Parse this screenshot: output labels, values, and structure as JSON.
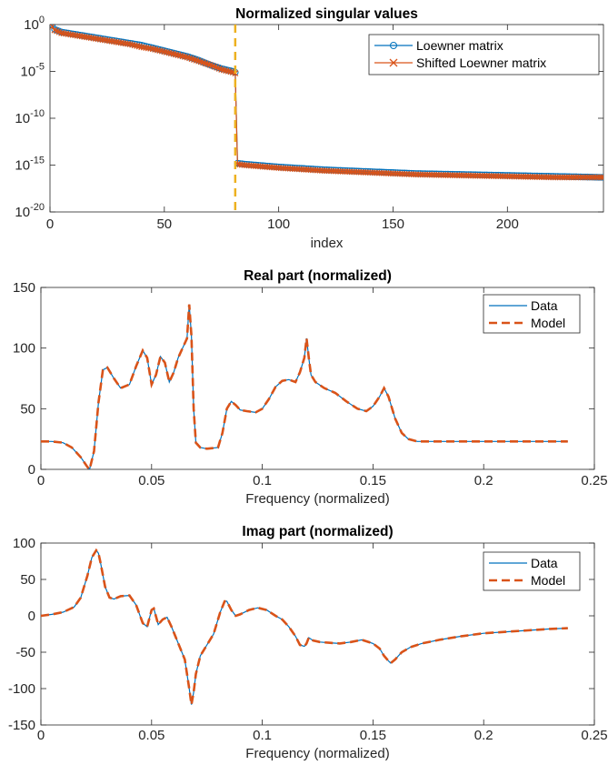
{
  "colors": {
    "blue": "#0072BD",
    "orange": "#D95319",
    "yellow": "#EDB120",
    "axis": "#262626"
  },
  "chart_data": [
    {
      "type": "line",
      "title": "Normalized singular values",
      "xlabel": "index",
      "ylabel": "",
      "xlim": [
        0,
        242
      ],
      "ylim": [
        1e-20,
        1
      ],
      "yscale": "log",
      "xticks": [
        0,
        50,
        100,
        150,
        200
      ],
      "xtick_labels": [
        "0",
        "50",
        "100",
        "150",
        "200"
      ],
      "yticks": [
        1,
        1e-05,
        1e-10,
        1e-15,
        1e-20
      ],
      "ytick_labels": [
        {
          "base": "10",
          "exp": "0"
        },
        {
          "base": "10",
          "exp": "-5"
        },
        {
          "base": "10",
          "exp": "-10"
        },
        {
          "base": "10",
          "exp": "-15"
        },
        {
          "base": "10",
          "exp": "-20"
        }
      ],
      "vline": {
        "x": 81,
        "style": "dashed"
      },
      "legend": {
        "location": "top-right"
      },
      "series": [
        {
          "name": "Loewner matrix",
          "marker": "circle",
          "x": [
            1,
            2,
            3,
            4,
            5,
            10,
            15,
            20,
            25,
            30,
            35,
            40,
            45,
            50,
            55,
            60,
            65,
            70,
            75,
            80,
            81,
            82,
            85,
            90,
            100,
            120,
            140,
            160,
            180,
            200,
            220,
            240,
            242
          ],
          "logy": [
            0,
            -0.5,
            -0.6,
            -0.7,
            -0.8,
            -1.0,
            -1.2,
            -1.4,
            -1.6,
            -1.8,
            -2.0,
            -2.2,
            -2.5,
            -2.8,
            -3.1,
            -3.4,
            -3.8,
            -4.3,
            -4.7,
            -5.0,
            -5.1,
            -14.8,
            -14.9,
            -15.0,
            -15.2,
            -15.5,
            -15.7,
            -15.9,
            -16.0,
            -16.1,
            -16.2,
            -16.3,
            -16.3
          ]
        },
        {
          "name": "Shifted Loewner matrix",
          "marker": "x",
          "x": [
            1,
            2,
            3,
            4,
            5,
            10,
            15,
            20,
            25,
            30,
            35,
            40,
            45,
            50,
            55,
            60,
            65,
            70,
            75,
            80,
            81,
            82,
            85,
            90,
            100,
            120,
            140,
            160,
            180,
            200,
            220,
            240,
            242
          ],
          "logy": [
            -0.2,
            -0.6,
            -0.7,
            -0.8,
            -0.9,
            -1.1,
            -1.3,
            -1.5,
            -1.7,
            -1.9,
            -2.1,
            -2.4,
            -2.6,
            -2.9,
            -3.2,
            -3.5,
            -3.9,
            -4.3,
            -4.8,
            -5.1,
            -5.2,
            -14.9,
            -15.0,
            -15.1,
            -15.3,
            -15.6,
            -15.8,
            -16.0,
            -16.1,
            -16.2,
            -16.3,
            -16.3,
            -16.3
          ]
        }
      ]
    },
    {
      "type": "line",
      "title": "Real part (normalized)",
      "xlabel": "Frequency (normalized)",
      "ylabel": "",
      "xlim": [
        0,
        0.25
      ],
      "ylim": [
        0,
        150
      ],
      "xticks": [
        0,
        0.05,
        0.1,
        0.15,
        0.2,
        0.25
      ],
      "xtick_labels": [
        "0",
        "0.05",
        "0.1",
        "0.15",
        "0.2",
        "0.25"
      ],
      "yticks": [
        0,
        50,
        100,
        150
      ],
      "ytick_labels": [
        "0",
        "50",
        "100",
        "150"
      ],
      "legend": {
        "location": "top-right"
      },
      "series": [
        {
          "name": "Data",
          "style": "solid",
          "x": [
            0,
            0.005,
            0.01,
            0.014,
            0.018,
            0.021,
            0.022,
            0.024,
            0.026,
            0.028,
            0.03,
            0.033,
            0.036,
            0.04,
            0.043,
            0.046,
            0.048,
            0.05,
            0.052,
            0.054,
            0.056,
            0.058,
            0.06,
            0.062,
            0.064,
            0.066,
            0.067,
            0.068,
            0.069,
            0.07,
            0.072,
            0.075,
            0.08,
            0.082,
            0.084,
            0.086,
            0.088,
            0.09,
            0.093,
            0.097,
            0.1,
            0.103,
            0.106,
            0.109,
            0.112,
            0.115,
            0.117,
            0.119,
            0.12,
            0.121,
            0.122,
            0.124,
            0.128,
            0.133,
            0.138,
            0.143,
            0.147,
            0.15,
            0.153,
            0.155,
            0.157,
            0.16,
            0.163,
            0.166,
            0.17,
            0.18,
            0.2,
            0.22,
            0.238
          ],
          "y": [
            23,
            23,
            22,
            18,
            10,
            2,
            0,
            15,
            55,
            82,
            84,
            75,
            67,
            70,
            85,
            98,
            92,
            70,
            78,
            93,
            88,
            72,
            80,
            92,
            100,
            108,
            136,
            110,
            50,
            22,
            18,
            17,
            18,
            30,
            50,
            56,
            53,
            49,
            48,
            47,
            50,
            58,
            68,
            73,
            74,
            72,
            80,
            92,
            108,
            92,
            78,
            72,
            67,
            63,
            56,
            50,
            48,
            52,
            60,
            67,
            60,
            42,
            30,
            25,
            23,
            23,
            23,
            23,
            23
          ]
        },
        {
          "name": "Model",
          "style": "dashed",
          "x": [
            0,
            0.005,
            0.01,
            0.014,
            0.018,
            0.021,
            0.022,
            0.024,
            0.026,
            0.028,
            0.03,
            0.033,
            0.036,
            0.04,
            0.043,
            0.046,
            0.048,
            0.05,
            0.052,
            0.054,
            0.056,
            0.058,
            0.06,
            0.062,
            0.064,
            0.066,
            0.067,
            0.068,
            0.069,
            0.07,
            0.072,
            0.075,
            0.08,
            0.082,
            0.084,
            0.086,
            0.088,
            0.09,
            0.093,
            0.097,
            0.1,
            0.103,
            0.106,
            0.109,
            0.112,
            0.115,
            0.117,
            0.119,
            0.12,
            0.121,
            0.122,
            0.124,
            0.128,
            0.133,
            0.138,
            0.143,
            0.147,
            0.15,
            0.153,
            0.155,
            0.157,
            0.16,
            0.163,
            0.166,
            0.17,
            0.18,
            0.2,
            0.22,
            0.238
          ],
          "y": [
            23,
            23,
            22,
            18,
            10,
            2,
            0,
            15,
            55,
            82,
            84,
            75,
            67,
            70,
            85,
            98,
            92,
            70,
            78,
            93,
            88,
            72,
            80,
            92,
            100,
            108,
            136,
            110,
            50,
            22,
            18,
            17,
            18,
            30,
            50,
            56,
            53,
            49,
            48,
            47,
            50,
            58,
            68,
            73,
            74,
            72,
            80,
            92,
            108,
            92,
            78,
            72,
            67,
            63,
            56,
            50,
            48,
            52,
            60,
            67,
            60,
            42,
            30,
            25,
            23,
            23,
            23,
            23,
            23
          ]
        }
      ]
    },
    {
      "type": "line",
      "title": "Imag part (normalized)",
      "xlabel": "Frequency (normalized)",
      "ylabel": "",
      "xlim": [
        0,
        0.25
      ],
      "ylim": [
        -150,
        100
      ],
      "xticks": [
        0,
        0.05,
        0.1,
        0.15,
        0.2,
        0.25
      ],
      "xtick_labels": [
        "0",
        "0.05",
        "0.1",
        "0.15",
        "0.2",
        "0.25"
      ],
      "yticks": [
        -150,
        -100,
        -50,
        0,
        50,
        100
      ],
      "ytick_labels": [
        "-150",
        "-100",
        "-50",
        "0",
        "50",
        "100"
      ],
      "legend": {
        "location": "top-right"
      },
      "series": [
        {
          "name": "Data",
          "style": "solid",
          "x": [
            0,
            0.005,
            0.01,
            0.015,
            0.018,
            0.021,
            0.023,
            0.025,
            0.026,
            0.027,
            0.029,
            0.031,
            0.033,
            0.036,
            0.04,
            0.043,
            0.046,
            0.048,
            0.05,
            0.051,
            0.053,
            0.055,
            0.057,
            0.059,
            0.061,
            0.063,
            0.065,
            0.066,
            0.067,
            0.068,
            0.069,
            0.07,
            0.072,
            0.075,
            0.078,
            0.081,
            0.083,
            0.084,
            0.086,
            0.088,
            0.09,
            0.094,
            0.098,
            0.102,
            0.106,
            0.109,
            0.112,
            0.115,
            0.117,
            0.119,
            0.12,
            0.121,
            0.123,
            0.126,
            0.13,
            0.135,
            0.14,
            0.145,
            0.15,
            0.153,
            0.155,
            0.157,
            0.158,
            0.16,
            0.163,
            0.167,
            0.172,
            0.18,
            0.19,
            0.2,
            0.21,
            0.22,
            0.23,
            0.238
          ],
          "y": [
            0,
            2,
            5,
            12,
            25,
            55,
            80,
            90,
            86,
            72,
            40,
            25,
            23,
            27,
            28,
            15,
            -10,
            -15,
            8,
            10,
            -12,
            -5,
            -2,
            -15,
            -30,
            -45,
            -60,
            -80,
            -100,
            -122,
            -105,
            -80,
            -55,
            -40,
            -25,
            5,
            20,
            20,
            8,
            0,
            2,
            8,
            11,
            8,
            0,
            -5,
            -15,
            -28,
            -40,
            -42,
            -38,
            -30,
            -34,
            -36,
            -37,
            -38,
            -36,
            -33,
            -38,
            -45,
            -55,
            -62,
            -65,
            -60,
            -50,
            -43,
            -38,
            -33,
            -28,
            -24,
            -22,
            -20,
            -18,
            -17
          ]
        },
        {
          "name": "Model",
          "style": "dashed",
          "x": [
            0,
            0.005,
            0.01,
            0.015,
            0.018,
            0.021,
            0.023,
            0.025,
            0.026,
            0.027,
            0.029,
            0.031,
            0.033,
            0.036,
            0.04,
            0.043,
            0.046,
            0.048,
            0.05,
            0.051,
            0.053,
            0.055,
            0.057,
            0.059,
            0.061,
            0.063,
            0.065,
            0.066,
            0.067,
            0.068,
            0.069,
            0.07,
            0.072,
            0.075,
            0.078,
            0.081,
            0.083,
            0.084,
            0.086,
            0.088,
            0.09,
            0.094,
            0.098,
            0.102,
            0.106,
            0.109,
            0.112,
            0.115,
            0.117,
            0.119,
            0.12,
            0.121,
            0.123,
            0.126,
            0.13,
            0.135,
            0.14,
            0.145,
            0.15,
            0.153,
            0.155,
            0.157,
            0.158,
            0.16,
            0.163,
            0.167,
            0.172,
            0.18,
            0.19,
            0.2,
            0.21,
            0.22,
            0.23,
            0.238
          ],
          "y": [
            0,
            2,
            5,
            12,
            25,
            55,
            80,
            90,
            86,
            72,
            40,
            25,
            23,
            27,
            28,
            15,
            -10,
            -15,
            8,
            10,
            -12,
            -5,
            -2,
            -15,
            -30,
            -45,
            -60,
            -80,
            -100,
            -122,
            -105,
            -80,
            -55,
            -40,
            -25,
            5,
            20,
            20,
            8,
            0,
            2,
            8,
            11,
            8,
            0,
            -5,
            -15,
            -28,
            -40,
            -42,
            -38,
            -30,
            -34,
            -36,
            -37,
            -38,
            -36,
            -33,
            -38,
            -45,
            -55,
            -62,
            -65,
            -60,
            -50,
            -43,
            -38,
            -33,
            -28,
            -24,
            -22,
            -20,
            -18,
            -17
          ]
        }
      ]
    }
  ]
}
